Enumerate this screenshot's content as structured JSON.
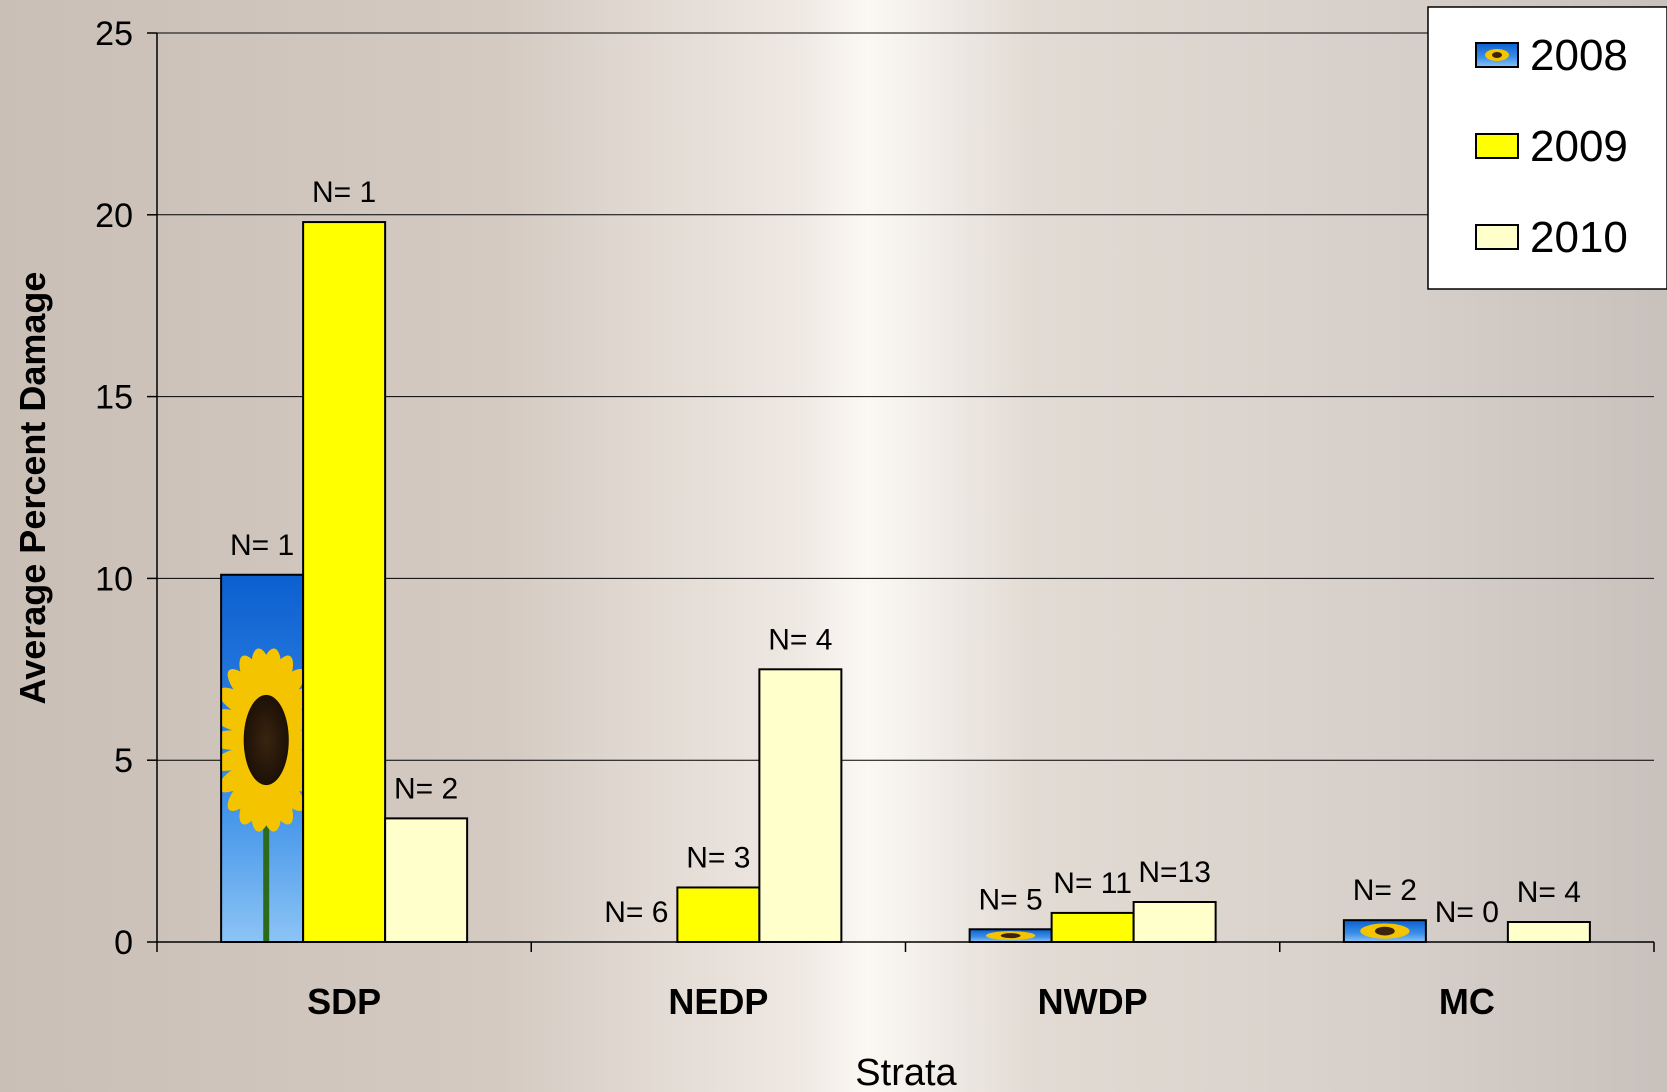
{
  "chart_data": {
    "type": "bar",
    "xlabel": "Strata",
    "ylabel": "Average Percent Damage",
    "ylim": [
      0,
      25
    ],
    "yticks": [
      0,
      5,
      10,
      15,
      20,
      25
    ],
    "grid": true,
    "legend_position": "top-right",
    "categories": [
      "SDP",
      "NEDP",
      "NWDP",
      "MC"
    ],
    "series": [
      {
        "name": "2008",
        "color": "#1e6fd8",
        "fill": "sunflower-image",
        "values": [
          10.1,
          0,
          0.35,
          0.6
        ],
        "labels": [
          "N= 1",
          "N= 6",
          "N= 5",
          "N= 2"
        ]
      },
      {
        "name": "2009",
        "color": "#ffff00",
        "values": [
          19.8,
          1.5,
          0.8,
          0
        ],
        "labels": [
          "N= 1",
          "N= 3",
          "N= 11",
          "N= 0"
        ]
      },
      {
        "name": "2010",
        "color": "#ffffcc",
        "values": [
          3.4,
          7.5,
          1.1,
          0.55
        ],
        "labels": [
          "N= 2",
          "N= 4",
          "N=13",
          "N= 4"
        ]
      }
    ]
  }
}
